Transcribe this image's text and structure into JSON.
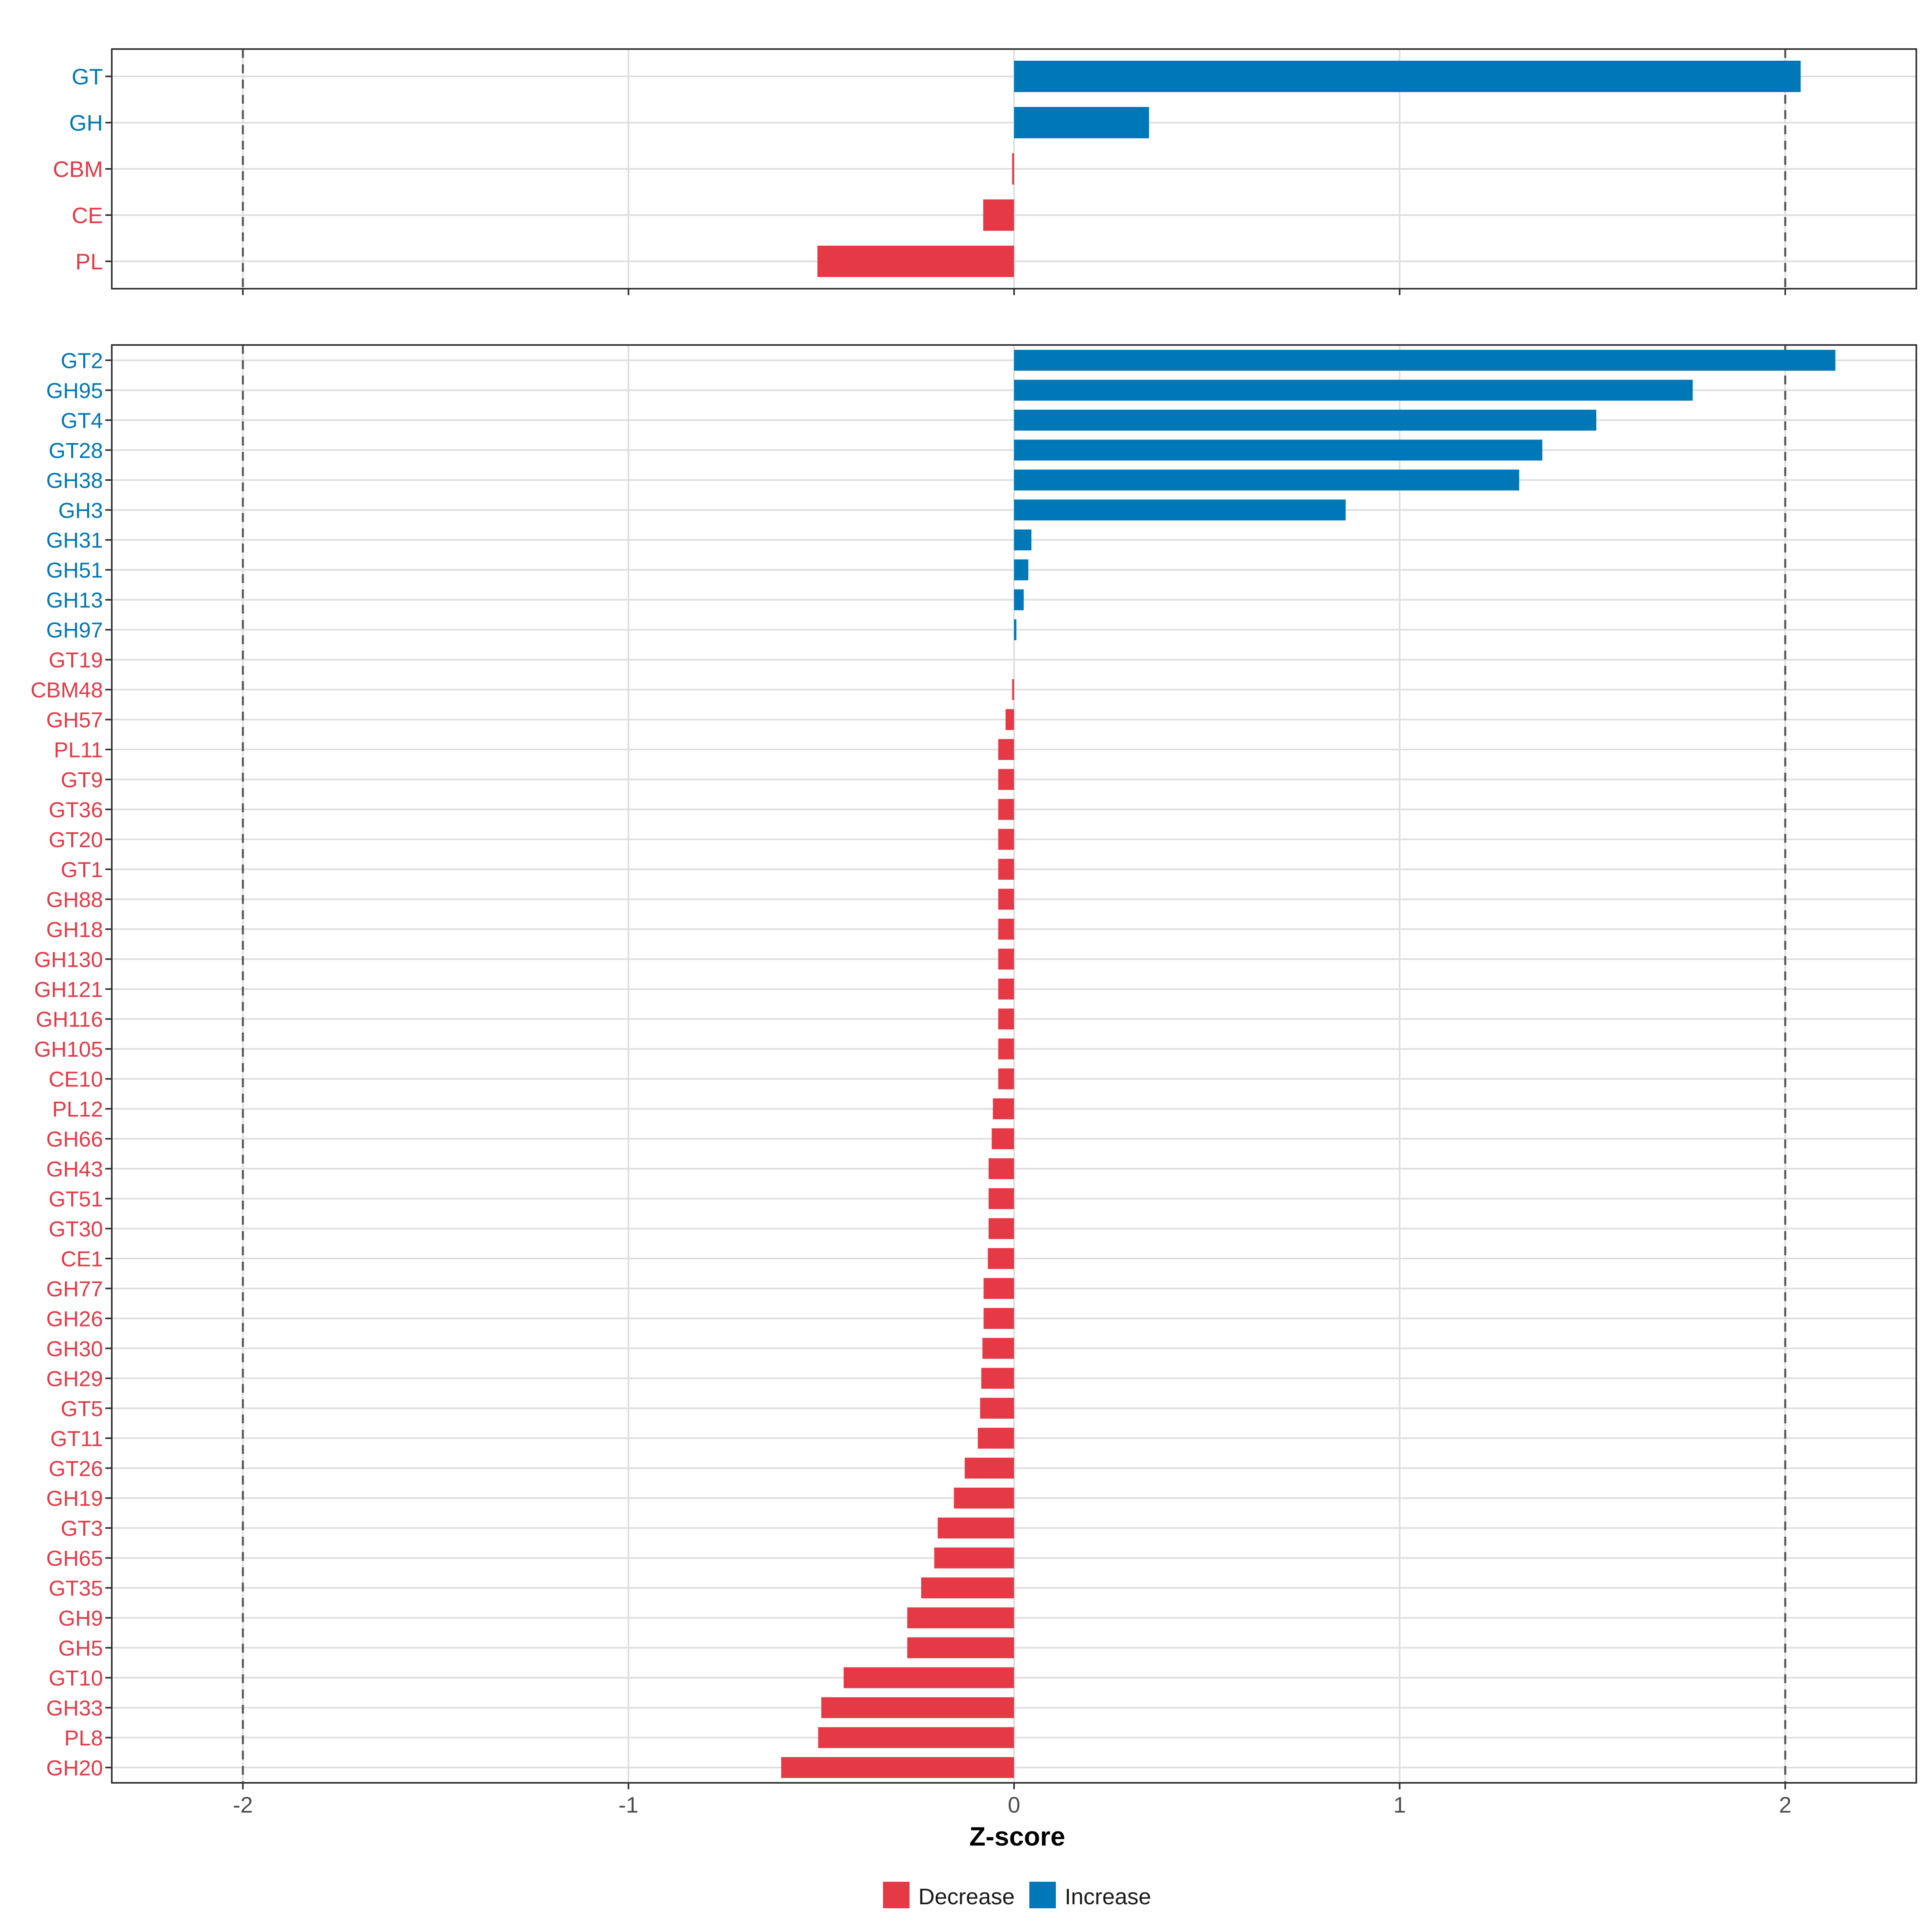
{
  "colors": {
    "decrease": "#E63946",
    "increase": "#0077B6"
  },
  "legend": {
    "decrease_label": "Decrease",
    "increase_label": "Increase"
  },
  "chart_data": [
    {
      "type": "bar",
      "orientation": "horizontal",
      "panel": "top",
      "xlabel": "Z-score",
      "xlim": [
        -2.34,
        2.34
      ],
      "xticks": [
        -2,
        -1,
        0,
        1,
        2
      ],
      "xtick_labels": [
        "-2",
        "-1",
        "0",
        "1",
        "2"
      ],
      "reference_lines": [
        -2,
        2
      ],
      "grid": true,
      "categories": [
        "GT",
        "GH",
        "CBM",
        "CE",
        "PL"
      ],
      "values": [
        2.04,
        0.35,
        -0.005,
        -0.08,
        -0.51
      ],
      "direction": [
        "Increase",
        "Increase",
        "Decrease",
        "Decrease",
        "Decrease"
      ]
    },
    {
      "type": "bar",
      "orientation": "horizontal",
      "panel": "bottom",
      "xlabel": "Z-score",
      "xlim": [
        -2.34,
        2.34
      ],
      "xticks": [
        -2,
        -1,
        0,
        1,
        2
      ],
      "xtick_labels": [
        "-2",
        "-1",
        "0",
        "1",
        "2"
      ],
      "reference_lines": [
        -2,
        2
      ],
      "grid": true,
      "categories": [
        "GT2",
        "GH95",
        "GT4",
        "GT28",
        "GH38",
        "GH3",
        "GH31",
        "GH51",
        "GH13",
        "GH97",
        "GT19",
        "CBM48",
        "GH57",
        "PL11",
        "GT9",
        "GT36",
        "GT20",
        "GT1",
        "GH88",
        "GH18",
        "GH130",
        "GH121",
        "GH116",
        "GH105",
        "CE10",
        "PL12",
        "GH66",
        "GH43",
        "GT51",
        "GT30",
        "CE1",
        "GH77",
        "GH26",
        "GH30",
        "GH29",
        "GT5",
        "GT11",
        "GT26",
        "GH19",
        "GT3",
        "GH65",
        "GT35",
        "GH9",
        "GH5",
        "GT10",
        "GH33",
        "PL8",
        "GH20"
      ],
      "values": [
        2.13,
        1.76,
        1.51,
        1.37,
        1.31,
        0.86,
        0.045,
        0.037,
        0.025,
        0.006,
        0.0,
        -0.005,
        -0.022,
        -0.041,
        -0.041,
        -0.041,
        -0.041,
        -0.041,
        -0.041,
        -0.041,
        -0.041,
        -0.041,
        -0.041,
        -0.041,
        -0.041,
        -0.055,
        -0.058,
        -0.066,
        -0.066,
        -0.066,
        -0.068,
        -0.079,
        -0.079,
        -0.082,
        -0.085,
        -0.088,
        -0.094,
        -0.128,
        -0.156,
        -0.198,
        -0.207,
        -0.241,
        -0.277,
        -0.277,
        -0.442,
        -0.5,
        -0.508,
        -0.604
      ],
      "direction": [
        "Increase",
        "Increase",
        "Increase",
        "Increase",
        "Increase",
        "Increase",
        "Increase",
        "Increase",
        "Increase",
        "Increase",
        "Decrease",
        "Decrease",
        "Decrease",
        "Decrease",
        "Decrease",
        "Decrease",
        "Decrease",
        "Decrease",
        "Decrease",
        "Decrease",
        "Decrease",
        "Decrease",
        "Decrease",
        "Decrease",
        "Decrease",
        "Decrease",
        "Decrease",
        "Decrease",
        "Decrease",
        "Decrease",
        "Decrease",
        "Decrease",
        "Decrease",
        "Decrease",
        "Decrease",
        "Decrease",
        "Decrease",
        "Decrease",
        "Decrease",
        "Decrease",
        "Decrease",
        "Decrease",
        "Decrease",
        "Decrease",
        "Decrease",
        "Decrease",
        "Decrease",
        "Decrease"
      ]
    }
  ]
}
